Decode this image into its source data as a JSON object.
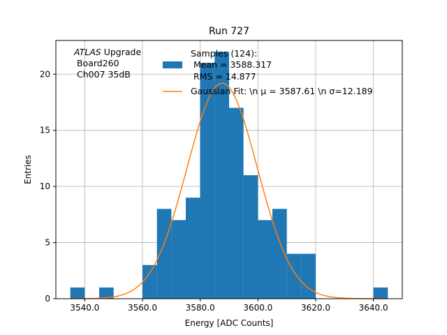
{
  "chart_data": {
    "type": "bar",
    "title": "Run 727",
    "xlabel": "Energy [ADC Counts]",
    "ylabel": "Entries",
    "xlim": [
      3530,
      3650
    ],
    "ylim": [
      0,
      23
    ],
    "grid": true,
    "x_ticks": [
      3540,
      3560,
      3580,
      3600,
      3620,
      3640
    ],
    "x_tick_labels": [
      "3540.0",
      "3560.0",
      "3580.0",
      "3600.0",
      "3620.0",
      "3640.0"
    ],
    "y_ticks": [
      0,
      5,
      10,
      15,
      20
    ],
    "y_tick_labels": [
      "0",
      "5",
      "10",
      "15",
      "20"
    ],
    "bin_width": 5,
    "bins": [
      {
        "x0": 3535,
        "value": 1
      },
      {
        "x0": 3545,
        "value": 1
      },
      {
        "x0": 3560,
        "value": 3
      },
      {
        "x0": 3565,
        "value": 8
      },
      {
        "x0": 3570,
        "value": 7
      },
      {
        "x0": 3575,
        "value": 9
      },
      {
        "x0": 3580,
        "value": 21
      },
      {
        "x0": 3585,
        "value": 22
      },
      {
        "x0": 3590,
        "value": 17
      },
      {
        "x0": 3595,
        "value": 11
      },
      {
        "x0": 3600,
        "value": 7
      },
      {
        "x0": 3605,
        "value": 8
      },
      {
        "x0": 3610,
        "value": 4
      },
      {
        "x0": 3615,
        "value": 4
      },
      {
        "x0": 3640,
        "value": 1
      }
    ],
    "fit": {
      "type": "gaussian",
      "mu": 3587.61,
      "sigma": 12.189,
      "peak": 19.2
    },
    "colors": {
      "histogram": "#1f77b4",
      "fit": "#ff7f0e",
      "grid": "#b0b0b0"
    },
    "annotation": {
      "line1_italic": "ATLAS",
      "line1_rest": " Upgrade",
      "line2": " Board260",
      "line3": " Ch007 35dB"
    },
    "legend": {
      "position": "top-right",
      "samples_line1": "Samples (124):",
      "samples_line2": " Mean = 3588.317",
      "samples_line3": " RMS = 14.877",
      "fit_label": "Gaussian Fit: \\n μ = 3587.61 \\n σ=12.189"
    }
  }
}
